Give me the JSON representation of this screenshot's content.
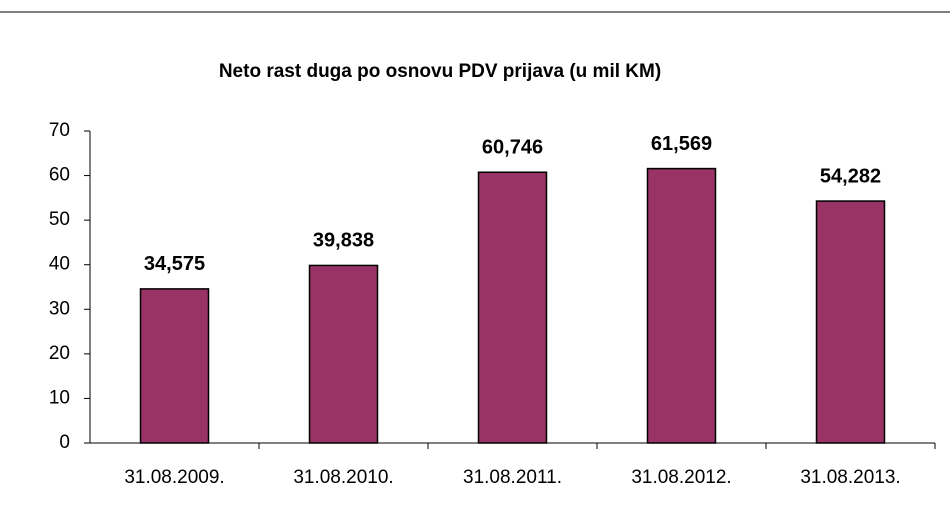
{
  "chart_data": {
    "type": "bar",
    "title": "Neto rast duga po osnovu PDV prijava (u mil KM)",
    "categories": [
      "31.08.2009.",
      "31.08.2010.",
      "31.08.2011.",
      "31.08.2012.",
      "31.08.2013."
    ],
    "values": [
      34.575,
      39.838,
      60.746,
      61.569,
      54.282
    ],
    "value_labels": [
      "34,575",
      "39,838",
      "60,746",
      "61,569",
      "54,282"
    ],
    "color": "#993366",
    "ylim": [
      0,
      70
    ],
    "yticks": [
      0,
      10,
      20,
      30,
      40,
      50,
      60,
      70
    ],
    "grid": false
  }
}
